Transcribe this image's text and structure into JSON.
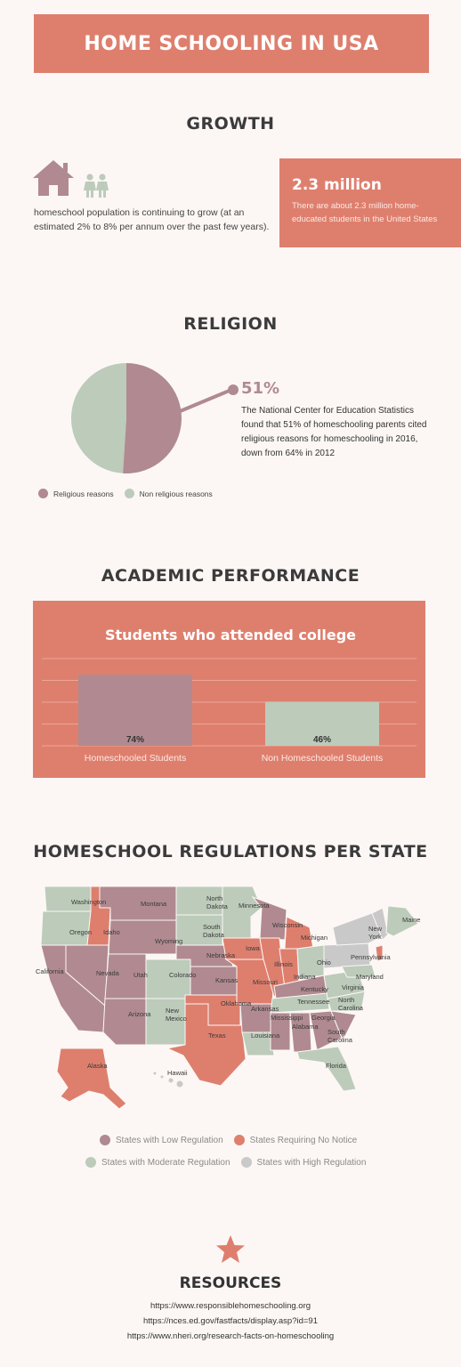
{
  "title": "HOME SCHOOLING IN USA",
  "colors": {
    "accent": "#de7f6e",
    "mauve": "#b08a90",
    "sage": "#bccbba",
    "grey": "#c9c9c9",
    "background": "#fcf7f5"
  },
  "growth": {
    "heading": "GROWTH",
    "icons": [
      "house-icon",
      "children-icon"
    ],
    "text": "homeschool population is continuing to grow (at an estimated 2% to 8% per annum over the past few years).",
    "stat_value": "2.3 million",
    "stat_text": "There are about 2.3 million home-educated students in the United States"
  },
  "religion": {
    "heading": "RELIGION",
    "percent": "51%",
    "text": "The National Center for Education Statistics found that 51% of homeschooling parents cited religious reasons for homeschooling in 2016, down from 64% in 2012",
    "legend": [
      {
        "label": "Religious reasons",
        "color": "#b08a90"
      },
      {
        "label": "Non religious reasons",
        "color": "#bccbba"
      }
    ]
  },
  "academic": {
    "heading": "ACADEMIC PERFORMANCE"
  },
  "chart_data": {
    "type": "bar",
    "title": "Students who attended college",
    "categories": [
      "Homeschooled Students",
      "Non Homeschooled Students"
    ],
    "values": [
      74,
      46
    ],
    "value_labels": [
      "74%",
      "46%"
    ],
    "bar_colors": [
      "#b08a90",
      "#bccbba"
    ],
    "ylim": [
      0,
      100
    ],
    "grid": true
  },
  "regulations": {
    "heading": "HOMESCHOOL REGULATIONS PER STATE",
    "state_labels": [
      "Washington",
      "Montana",
      "North Dakota",
      "Minnesota",
      "Maine",
      "Oregon",
      "Idaho",
      "South Dakota",
      "Wisconsin",
      "New York",
      "Wyoming",
      "Michigan",
      "Iowa",
      "Nebraska",
      "Pennsylvania",
      "Ohio",
      "California",
      "Nevada",
      "Utah",
      "Colorado",
      "Illinois",
      "Indiana",
      "Maryland",
      "Kansas",
      "Missouri",
      "Kentucky",
      "Virginia",
      "Oklahoma",
      "Tennessee",
      "North Carolina",
      "Arkansas",
      "New Mexico",
      "Arizona",
      "Mississippi",
      "Georgia",
      "Texas",
      "Louisiana",
      "Alabama",
      "South Carolina",
      "Alaska",
      "Hawaii",
      "Florida"
    ],
    "legend": [
      {
        "label": "States with Low Regulation",
        "color": "#b08a90"
      },
      {
        "label": "States Requiring No Notice",
        "color": "#de7f6e"
      },
      {
        "label": "States with Moderate Regulation",
        "color": "#bccbba"
      },
      {
        "label": "States with High Regulation",
        "color": "#c9c9c9"
      }
    ]
  },
  "resources": {
    "heading": "RESOURCES",
    "links": [
      "https://www.responsiblehomeschooling.org",
      "https://nces.ed.gov/fastfacts/display.asp?id=91",
      "https://www.nheri.org/research-facts-on-homeschooling"
    ]
  }
}
